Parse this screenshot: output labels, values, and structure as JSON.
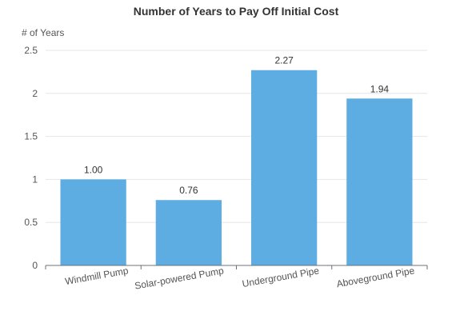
{
  "chart_data": {
    "type": "bar",
    "title": "Number of Years to Pay Off Initial Cost",
    "xlabel": "",
    "ylabel": "# of Years",
    "categories": [
      "Windmill Pump",
      "Solar-powered Pump",
      "Underground Pipe",
      "Aboveground Pipe"
    ],
    "values": [
      1.0,
      0.76,
      2.27,
      1.94
    ],
    "value_labels": [
      "1.00",
      "0.76",
      "2.27",
      "1.94"
    ],
    "ylim": [
      0,
      2.5
    ],
    "yticks": [
      0,
      0.5,
      1,
      1.5,
      2,
      2.5
    ],
    "ytick_labels": [
      "0",
      "0.5",
      "1",
      "1.5",
      "2",
      "2.5"
    ],
    "grid": true,
    "legend": "none",
    "colors": {
      "bar": "#5DADE2",
      "grid": "#E6E6E6",
      "axis": "#6E7079"
    }
  }
}
